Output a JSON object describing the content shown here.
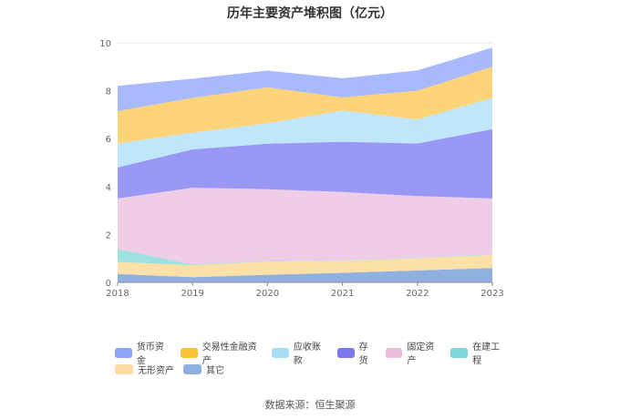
{
  "chart_data": {
    "type": "area",
    "stacked": true,
    "title": "历年主要资产堆积图（亿元）",
    "x": [
      "2018",
      "2019",
      "2020",
      "2021",
      "2022",
      "2023"
    ],
    "ylim": [
      0,
      10
    ],
    "yticks": [
      "0",
      "2",
      "4",
      "6",
      "8",
      "10"
    ],
    "grid": true,
    "legend_position": "bottom",
    "series": [
      {
        "name": "其它",
        "color": "#8fb0e0",
        "values": [
          0.35,
          0.22,
          0.32,
          0.4,
          0.5,
          0.6
        ]
      },
      {
        "name": "无形资产",
        "color": "#fde0a8",
        "values": [
          0.5,
          0.5,
          0.55,
          0.5,
          0.5,
          0.55
        ]
      },
      {
        "name": "在建工程",
        "color": "#9fe0e0",
        "values": [
          0.55,
          0.03,
          0.02,
          0.02,
          0.02,
          0.02
        ]
      },
      {
        "name": "固定资产",
        "color": "#efcde6",
        "values": [
          2.1,
          3.2,
          3.0,
          2.85,
          2.58,
          2.33
        ]
      },
      {
        "name": "存货",
        "color": "#9999f5",
        "values": [
          1.3,
          1.6,
          1.9,
          2.1,
          2.2,
          2.9
        ]
      },
      {
        "name": "应收账款",
        "color": "#bfe6fa",
        "values": [
          1.0,
          0.7,
          0.85,
          1.3,
          1.0,
          1.3
        ]
      },
      {
        "name": "交易性金融资产",
        "color": "#fed479",
        "values": [
          1.35,
          1.45,
          1.5,
          0.55,
          1.2,
          1.3
        ]
      },
      {
        "name": "货币资金",
        "color": "#a8bafc",
        "values": [
          1.05,
          0.8,
          0.7,
          0.8,
          0.85,
          0.8
        ]
      }
    ]
  },
  "legend": {
    "row1": [
      {
        "label": "货币资金",
        "color": "#8ea4fb"
      },
      {
        "label": "交易性金融资产",
        "color": "#fcc338"
      },
      {
        "label": "应收账款",
        "color": "#a9ddf6"
      },
      {
        "label": "存货",
        "color": "#7b78ee"
      },
      {
        "label": "固定资产",
        "color": "#ebbcdd"
      },
      {
        "label": "在建工程",
        "color": "#7fd6d6"
      }
    ],
    "row2": [
      {
        "label": "无形资产",
        "color": "#fddaa0"
      },
      {
        "label": "其它",
        "color": "#8fb0e0"
      }
    ]
  },
  "source": "数据来源：恒生聚源"
}
